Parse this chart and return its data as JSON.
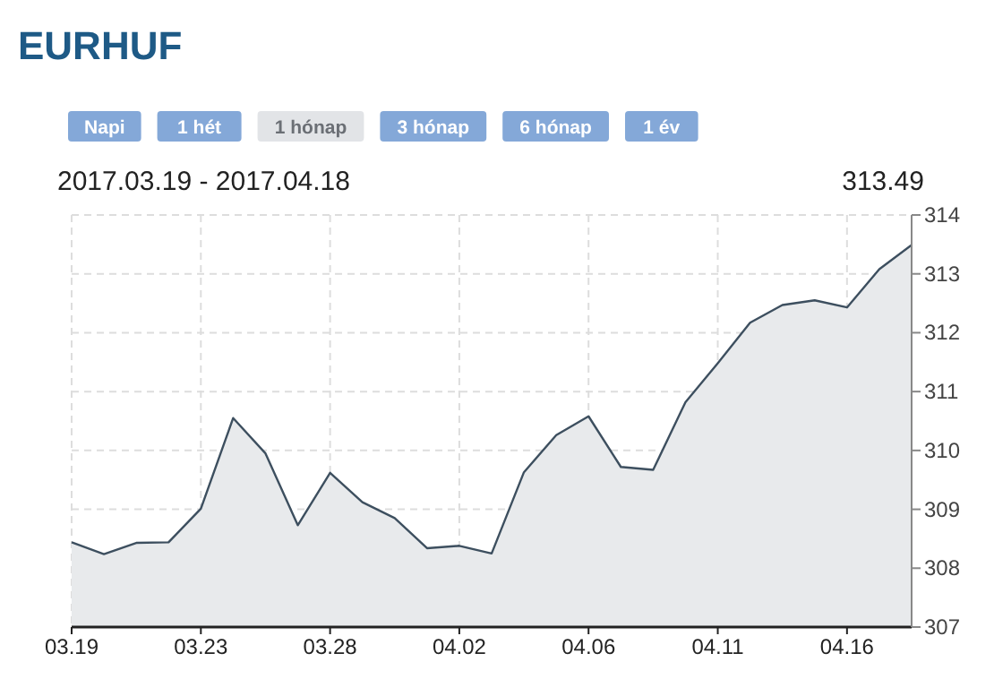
{
  "chart_data": {
    "type": "area",
    "title": "EURHUF",
    "subtitle": "2017.03.19 - 2017.04.18",
    "annotations": [
      "Napi",
      "1 hét",
      "1 hónap",
      "3 hónap",
      "6 hónap",
      "1 év",
      "313.49"
    ],
    "categories": [
      "03.19",
      null,
      null,
      null,
      "03.23",
      null,
      null,
      null,
      "03.28",
      null,
      null,
      null,
      "04.02",
      null,
      null,
      null,
      "04.06",
      null,
      null,
      null,
      "04.11",
      null,
      null,
      null,
      "04.16",
      null,
      null
    ],
    "series": [
      {
        "color": "#3d4f5f",
        "values": [
          308.44,
          308.24,
          308.43,
          308.44,
          309.01,
          310.55,
          309.95,
          308.73,
          309.62,
          309.12,
          308.85,
          308.34,
          308.38,
          308.25,
          309.63,
          310.26,
          310.58,
          309.72,
          309.67,
          310.82,
          311.48,
          312.17,
          312.47,
          312.55,
          312.43,
          313.08,
          313.49
        ]
      }
    ],
    "ylim": [
      307,
      314
    ],
    "yticks": [
      307,
      308,
      309,
      310,
      311,
      312,
      313,
      314
    ],
    "grid": true
  }
}
